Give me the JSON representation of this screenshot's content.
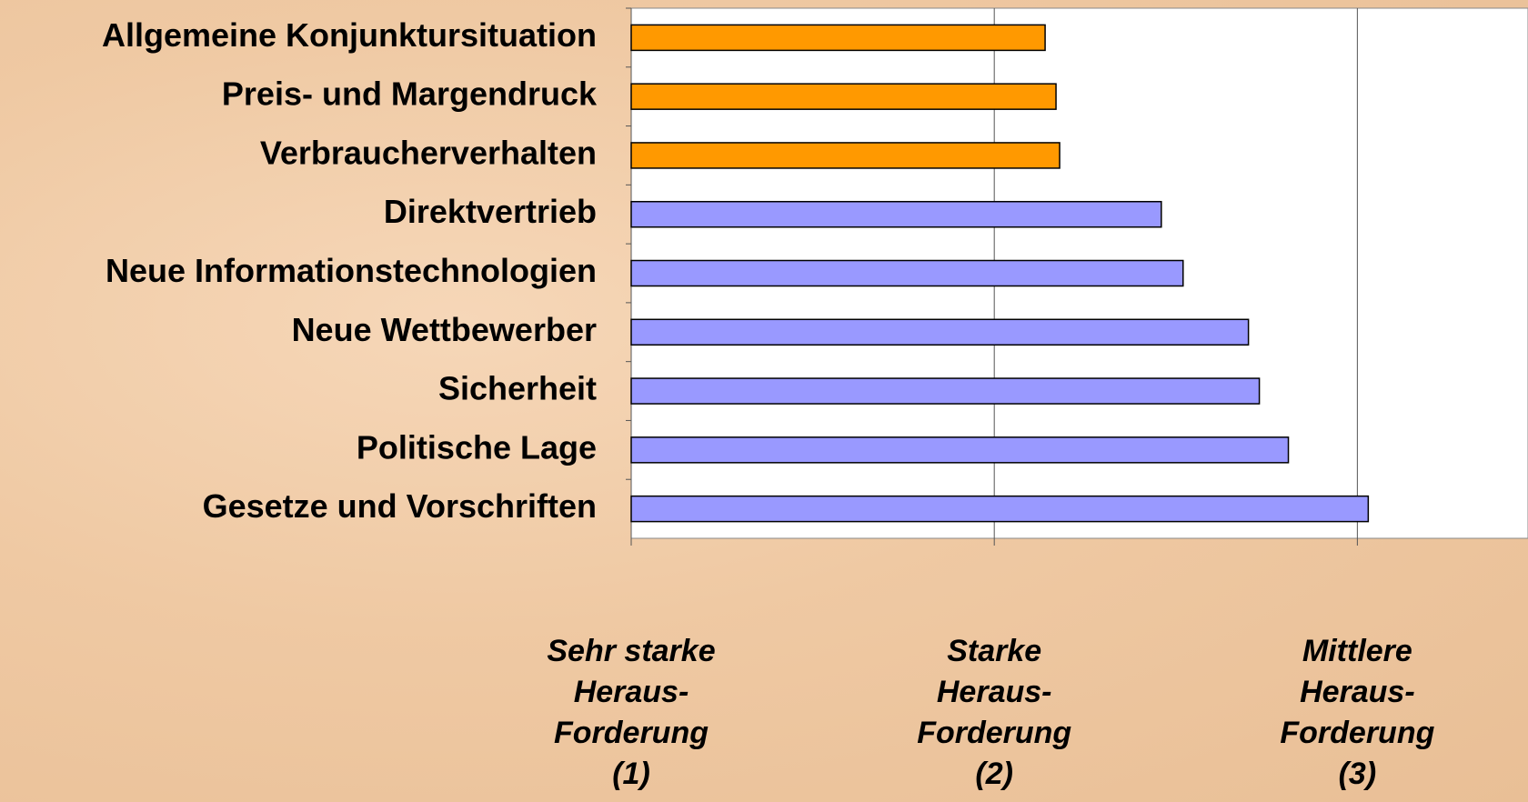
{
  "chart_data": {
    "type": "bar",
    "orientation": "horizontal",
    "categories": [
      "Allgemeine Konjunktursituation",
      "Preis- und Margendruck",
      "Verbraucherverhalten",
      "Direktvertrieb",
      "Neue Informationstechnologien",
      "Neue Wettbewerber",
      "Sicherheit",
      "Politische Lage",
      "Gesetze und Vorschriften"
    ],
    "values": [
      2.14,
      2.17,
      2.18,
      2.46,
      2.52,
      2.7,
      2.73,
      2.81,
      3.03
    ],
    "colors": [
      "#ff9900",
      "#ff9900",
      "#ff9900",
      "#9999ff",
      "#9999ff",
      "#9999ff",
      "#9999ff",
      "#9999ff",
      "#9999ff"
    ],
    "xlim": [
      1,
      3.47
    ],
    "xticks": [
      {
        "value": 1,
        "label": "Sehr starke Heraus-Forderung (1)"
      },
      {
        "value": 2,
        "label": "Starke Heraus-Forderung (2)"
      },
      {
        "value": 3,
        "label": "Mittlere Heraus-Forderung (3)"
      }
    ],
    "grid": true
  }
}
